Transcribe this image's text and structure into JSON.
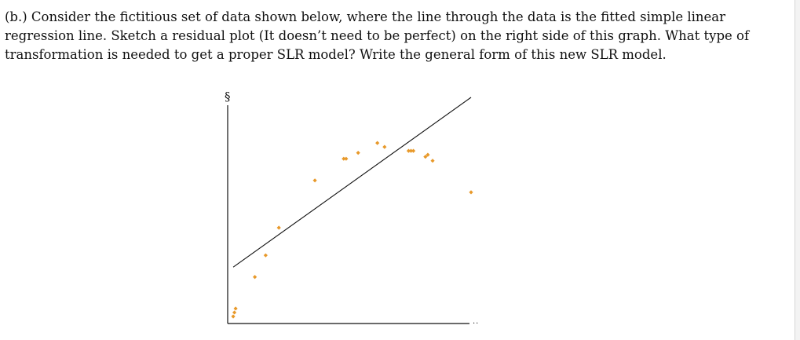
{
  "question": {
    "lines": [
      "(b.) Consider the fictitious set of data shown below, where the line through the data is the fitted simple linear",
      "regression line. Sketch a residual plot (It doesn’t need to be perfect) on the right side of this graph. What type of",
      "transformation is needed to get a proper SLR model? Write the general form of this new SLR model."
    ]
  },
  "chart_data": {
    "type": "scatter",
    "title": "",
    "xlabel": "..",
    "ylabel": "§",
    "xlim": [
      0,
      100
    ],
    "ylim": [
      0,
      100
    ],
    "grid": false,
    "point_color": "#e8992a",
    "line_color": "#111111",
    "points": [
      {
        "x": 1,
        "y": 2
      },
      {
        "x": 1.5,
        "y": 4
      },
      {
        "x": 2,
        "y": 6
      },
      {
        "x": 10,
        "y": 22
      },
      {
        "x": 14.5,
        "y": 33
      },
      {
        "x": 20,
        "y": 47
      },
      {
        "x": 35,
        "y": 71
      },
      {
        "x": 47,
        "y": 82
      },
      {
        "x": 48,
        "y": 82
      },
      {
        "x": 53,
        "y": 85
      },
      {
        "x": 61,
        "y": 90
      },
      {
        "x": 64,
        "y": 88
      },
      {
        "x": 74,
        "y": 86
      },
      {
        "x": 75,
        "y": 86
      },
      {
        "x": 76,
        "y": 86
      },
      {
        "x": 81,
        "y": 83
      },
      {
        "x": 82,
        "y": 84
      },
      {
        "x": 84,
        "y": 81
      },
      {
        "x": 100,
        "y": 65
      }
    ],
    "fit_line": {
      "x": [
        1,
        100
      ],
      "y": [
        27,
        100
      ]
    }
  }
}
